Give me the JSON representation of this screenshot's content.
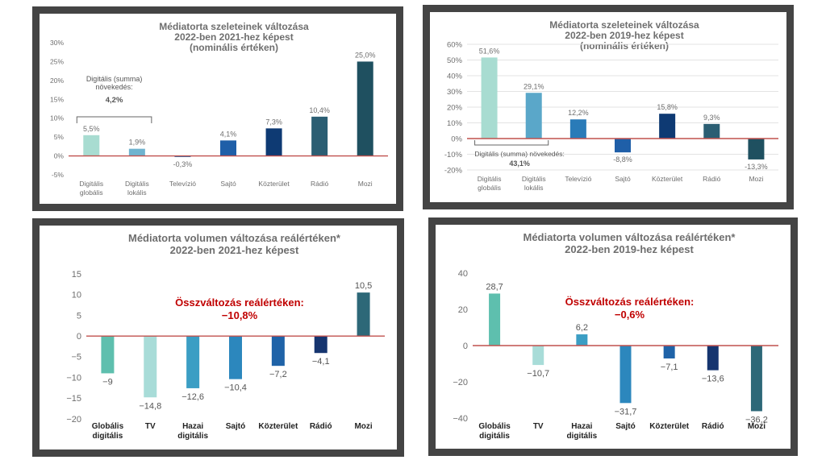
{
  "chart_data": [
    {
      "type": "bar",
      "title": [
        "Médiatorta szeleteinek változása",
        "2022-ben 2021-hez képest",
        "(nominális értéken)"
      ],
      "categories": [
        [
          "Digitális",
          "globális"
        ],
        [
          "Digitális",
          "lokális"
        ],
        [
          "Televízió"
        ],
        [
          "Sajtó"
        ],
        [
          "Közterület"
        ],
        [
          "Rádió"
        ],
        [
          "Mozi"
        ]
      ],
      "values": [
        5.5,
        1.9,
        -0.3,
        4.1,
        7.3,
        10.4,
        25.0
      ],
      "value_labels": [
        "5,5%",
        "1,9%",
        "-0,3%",
        "4,1%",
        "7,3%",
        "10,4%",
        "25,0%"
      ],
      "ylim": [
        -5,
        30
      ],
      "yticks": [
        30,
        25,
        20,
        15,
        10,
        5,
        0,
        -5
      ],
      "ytick_labels": [
        "30%",
        "25%",
        "20%",
        "15%",
        "10%",
        "5%",
        "0%",
        "-5%"
      ],
      "colors": [
        "#a8dcd1",
        "#6fb3cf",
        "#2a7bb8",
        "#1f5fa8",
        "#0e3a73",
        "#2b5e73",
        "#1f5060"
      ],
      "annotation": {
        "label_lines": [
          "Digitális (summa)",
          "növekedés:"
        ],
        "value": "4,2%",
        "spans": [
          0,
          1
        ]
      }
    },
    {
      "type": "bar",
      "title": [
        "Médiatorta szeleteinek változása",
        "2022-ben 2019-hez képest",
        "(nominális értéken)"
      ],
      "categories": [
        [
          "Digitális",
          "globális"
        ],
        [
          "Digitális",
          "lokális"
        ],
        [
          "Televízió"
        ],
        [
          "Sajtó"
        ],
        [
          "Közterület"
        ],
        [
          "Rádió"
        ],
        [
          "Mozi"
        ]
      ],
      "values": [
        51.6,
        29.1,
        12.2,
        -8.8,
        15.8,
        9.3,
        -13.3
      ],
      "value_labels": [
        "51,6%",
        "29,1%",
        "12,2%",
        "-8,8%",
        "15,8%",
        "9,3%",
        "-13,3%"
      ],
      "ylim": [
        -20,
        60
      ],
      "yticks": [
        60,
        50,
        40,
        30,
        20,
        10,
        0,
        -10,
        -20
      ],
      "ytick_labels": [
        "60%",
        "50%",
        "40%",
        "30%",
        "20%",
        "10%",
        "0%",
        "-10%",
        "-20%"
      ],
      "colors": [
        "#a8dcd1",
        "#5aa7c9",
        "#2a7bb8",
        "#1f5fa8",
        "#0e3a73",
        "#2b5e73",
        "#1f5060"
      ],
      "annotation": {
        "label_lines": [
          "Digitális (summa) növekedés:"
        ],
        "value": "43,1%",
        "spans": [
          0,
          1
        ]
      }
    },
    {
      "type": "bar",
      "title": [
        "Médiatorta volumen változása reálértéken*",
        "2022-ben 2021-hez képest"
      ],
      "categories": [
        [
          "Globális",
          "digitális"
        ],
        [
          "TV"
        ],
        [
          "Hazai",
          "digitális"
        ],
        [
          "Sajtó"
        ],
        [
          "Közterület"
        ],
        [
          "Rádió"
        ],
        [
          "Mozi"
        ]
      ],
      "values": [
        -9,
        -14.8,
        -12.6,
        -10.4,
        -7.2,
        -4.1,
        10.5
      ],
      "value_labels": [
        "−9",
        "−14,8",
        "−12,6",
        "−10,4",
        "−7,2",
        "−4,1",
        "10,5"
      ],
      "ylim": [
        -20,
        15
      ],
      "yticks": [
        15,
        10,
        5,
        0,
        -5,
        -10,
        -15,
        -20
      ],
      "ytick_labels": [
        "15",
        "10",
        "5",
        "0",
        "−5",
        "−10",
        "−15",
        "−20"
      ],
      "colors": [
        "#5ebfae",
        "#a8dcd8",
        "#3b9ec4",
        "#2c87bd",
        "#1f63a8",
        "#16356f",
        "#2d6878"
      ],
      "note_lines": [
        "Összváltozás reálértéken:",
        "−10,8%"
      ]
    },
    {
      "type": "bar",
      "title": [
        "Médiatorta volumen változása reálértéken*",
        "2022-ben 2019-hez képest"
      ],
      "categories": [
        [
          "Globális",
          "digitális"
        ],
        [
          "TV"
        ],
        [
          "Hazai",
          "digitális"
        ],
        [
          "Sajtó"
        ],
        [
          "Közterület"
        ],
        [
          "Rádió"
        ],
        [
          "Mozi"
        ]
      ],
      "values": [
        28.7,
        -10.7,
        6.2,
        -31.7,
        -7.1,
        -13.6,
        -36.2
      ],
      "value_labels": [
        "28,7",
        "−10,7",
        "6,2",
        "−31,7",
        "−7,1",
        "−13,6",
        "−36,2"
      ],
      "ylim": [
        -40,
        40
      ],
      "yticks": [
        40,
        20,
        0,
        -20,
        -40
      ],
      "ytick_labels": [
        "40",
        "20",
        "0",
        "−20",
        "−40"
      ],
      "colors": [
        "#5ebfae",
        "#a8dcd8",
        "#3b9ec4",
        "#2c87bd",
        "#1f63a8",
        "#16356f",
        "#2d6878"
      ],
      "note_lines": [
        "Összváltozás reálértéken:",
        "−0,6%"
      ]
    }
  ]
}
